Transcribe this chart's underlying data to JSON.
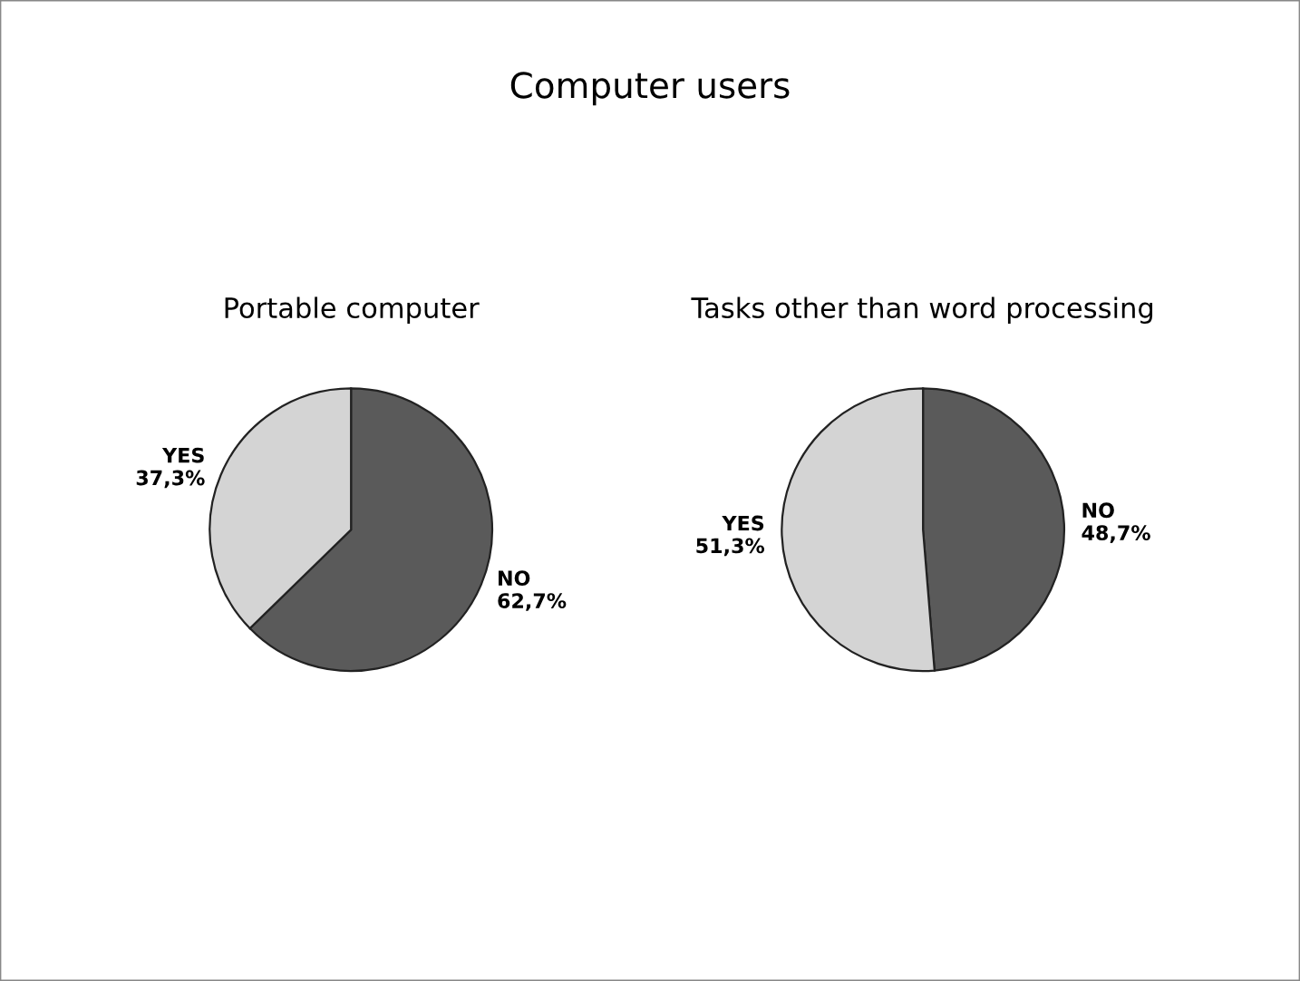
{
  "chart_data": [
    {
      "type": "pie",
      "title": "Portable computer",
      "annotations": [
        "Computer users"
      ],
      "categories": [
        "NO",
        "YES"
      ],
      "values": [
        62.7,
        37.3
      ],
      "value_labels": [
        "62,7%",
        "37,3%"
      ],
      "colors": [
        "#5a5a5a",
        "#d4d4d4"
      ]
    },
    {
      "type": "pie",
      "title": "Tasks other than word processing",
      "categories": [
        "NO",
        "YES"
      ],
      "values": [
        48.7,
        51.3
      ],
      "value_labels": [
        "48,7%",
        "51,3%"
      ],
      "colors": [
        "#5a5a5a",
        "#d4d4d4"
      ]
    }
  ]
}
